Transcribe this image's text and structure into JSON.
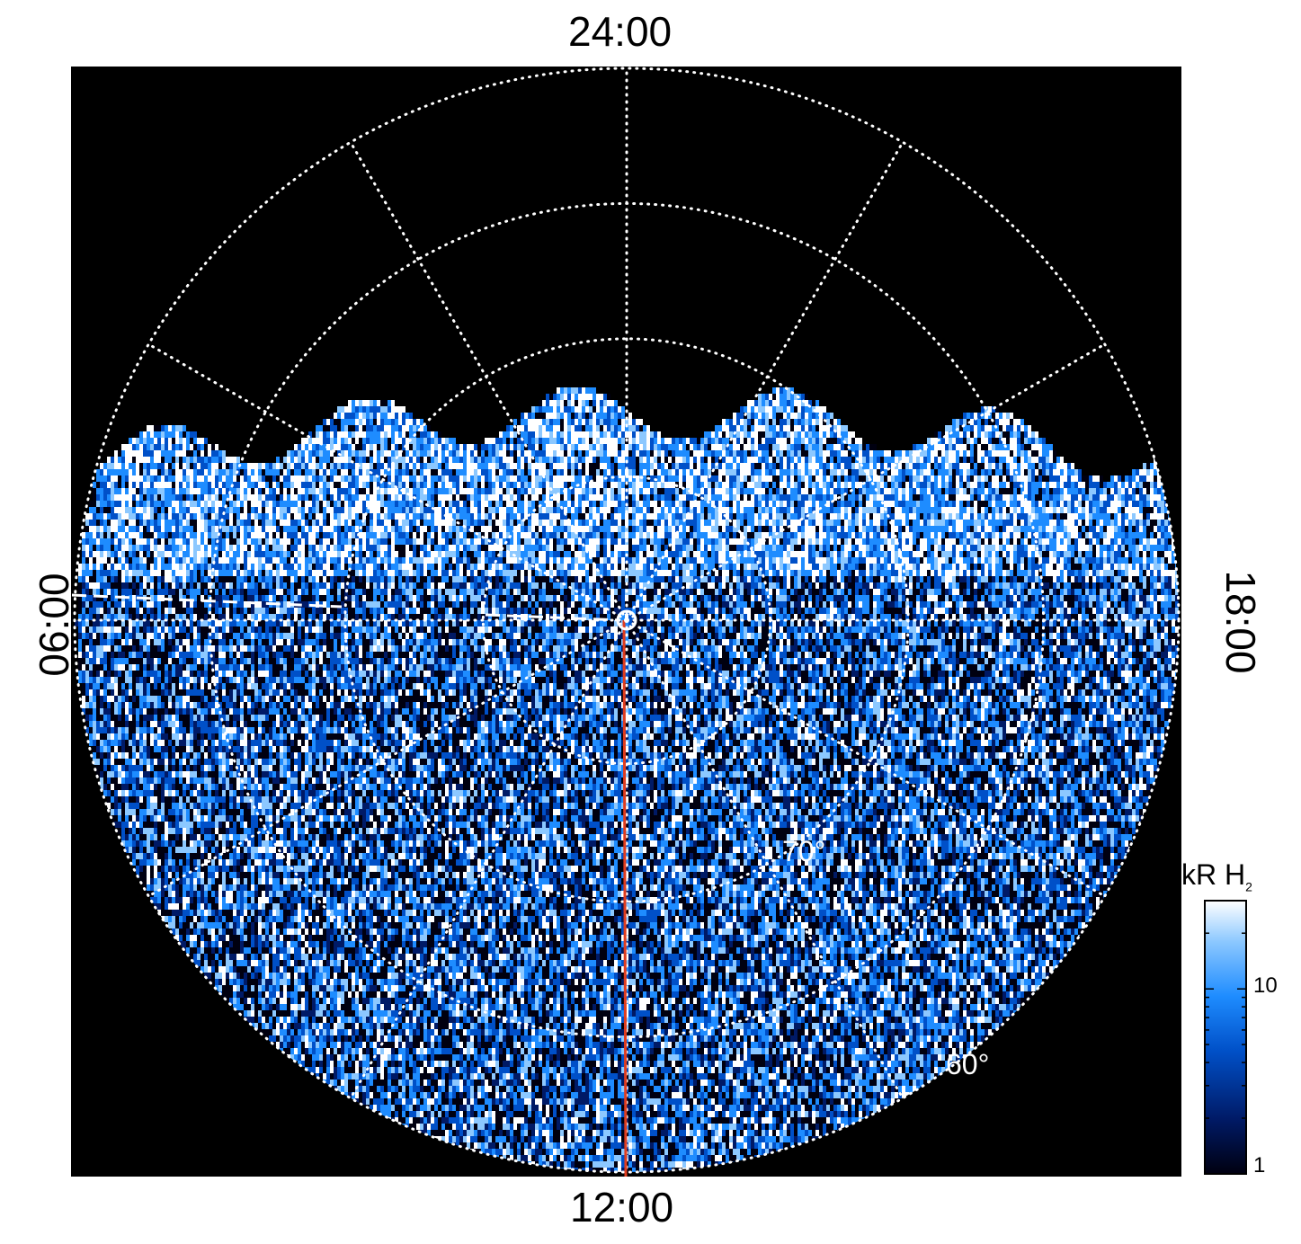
{
  "chart_data": {
    "type": "heatmap",
    "projection": "polar",
    "local_time_labels": {
      "top": "24:00",
      "bottom": "12:00",
      "left": "06:00",
      "right": "18:00"
    },
    "latitude_labels": [
      "70°",
      "60°"
    ],
    "colorbar": {
      "title": "kR H",
      "title_subscript": "2",
      "scale": "log",
      "range": [
        1,
        30
      ],
      "ticks": [
        "10",
        "1"
      ],
      "colors": [
        "#000010",
        "#001a66",
        "#0050c8",
        "#1e8cff",
        "#8cc8ff",
        "#ffffff"
      ]
    },
    "meridian_line_color": "#e03c1e",
    "grid": true,
    "background": "#000000"
  }
}
